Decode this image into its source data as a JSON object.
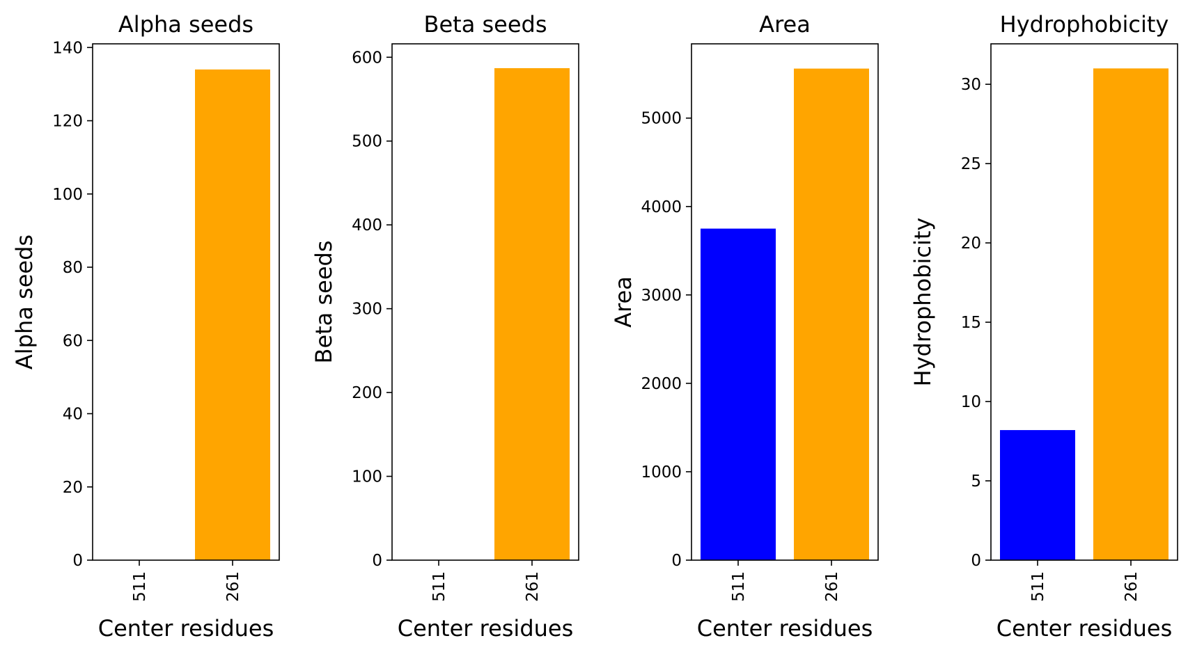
{
  "chart_data": [
    {
      "type": "bar",
      "title": "Alpha seeds",
      "xlabel": "Center residues",
      "ylabel": "Alpha seeds",
      "categories": [
        "511",
        "261"
      ],
      "values": [
        0,
        134
      ],
      "bar_colors": [
        "#0000ff",
        "#ffa500"
      ],
      "ylim": [
        0,
        141
      ],
      "yticks": [
        0,
        20,
        40,
        60,
        80,
        100,
        120,
        140
      ],
      "grid": false
    },
    {
      "type": "bar",
      "title": "Beta seeds",
      "xlabel": "Center residues",
      "ylabel": "Beta seeds",
      "categories": [
        "511",
        "261"
      ],
      "values": [
        0,
        587
      ],
      "bar_colors": [
        "#0000ff",
        "#ffa500"
      ],
      "ylim": [
        0,
        616
      ],
      "yticks": [
        0,
        100,
        200,
        300,
        400,
        500,
        600
      ],
      "grid": false
    },
    {
      "type": "bar",
      "title": "Area",
      "xlabel": "Center residues",
      "ylabel": "Area",
      "categories": [
        "511",
        "261"
      ],
      "values": [
        3750,
        5560
      ],
      "bar_colors": [
        "#0000ff",
        "#ffa500"
      ],
      "ylim": [
        0,
        5840
      ],
      "yticks": [
        0,
        1000,
        2000,
        3000,
        4000,
        5000
      ],
      "grid": false
    },
    {
      "type": "bar",
      "title": "Hydrophobicity",
      "xlabel": "Center residues",
      "ylabel": "Hydrophobicity",
      "categories": [
        "511",
        "261"
      ],
      "values": [
        8.2,
        31.0
      ],
      "bar_colors": [
        "#0000ff",
        "#ffa500"
      ],
      "ylim": [
        0,
        32.55
      ],
      "yticks": [
        0,
        5,
        10,
        15,
        20,
        25,
        30
      ],
      "grid": false
    }
  ]
}
